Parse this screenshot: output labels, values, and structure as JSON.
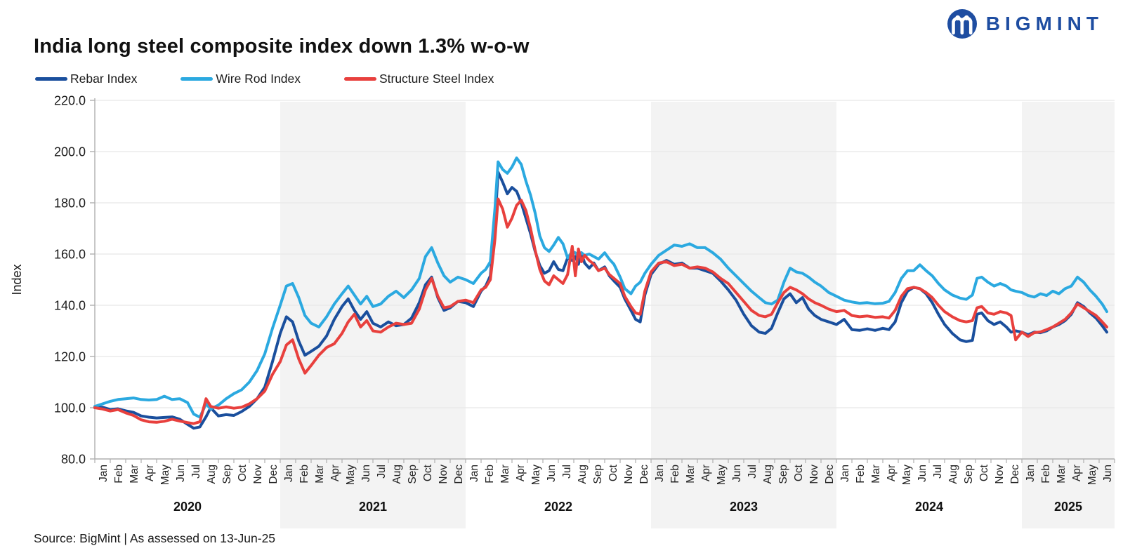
{
  "header": {
    "title": "India long steel composite index down 1.3% w-o-w"
  },
  "brand": {
    "name": "BIGMINT",
    "color": "#1E4DA1"
  },
  "legend": [
    {
      "label": "Rebar Index",
      "color": "#1A4F9D"
    },
    {
      "label": "Wire Rod Index",
      "color": "#2BA9E0"
    },
    {
      "label": "Structure Steel Index",
      "color": "#E8403D"
    }
  ],
  "footer": {
    "source_note": "Source: BigMint | As assessed on 13-Jun-25"
  },
  "chart_data": {
    "type": "line",
    "title": "India long steel composite index down 1.3% w-o-w",
    "ylabel": "Index",
    "ylim": [
      80,
      220
    ],
    "ytick_step": 20,
    "ytick_labels": [
      "80.0",
      "100.0",
      "120.0",
      "140.0",
      "160.0",
      "180.0",
      "200.0",
      "220.0"
    ],
    "grid": "horizontal",
    "legend_position": "top-left",
    "x_unit": "months since Jan-2020 (0 = Jan 2020)",
    "month_labels": [
      "Jan",
      "Feb",
      "Mar",
      "Apr",
      "May",
      "Jun",
      "Jul",
      "Aug",
      "Sep",
      "Oct",
      "Nov",
      "Dec"
    ],
    "years": [
      {
        "year": "2020",
        "months": 12,
        "shaded": false
      },
      {
        "year": "2021",
        "months": 12,
        "shaded": true
      },
      {
        "year": "2022",
        "months": 12,
        "shaded": false
      },
      {
        "year": "2023",
        "months": 12,
        "shaded": true
      },
      {
        "year": "2024",
        "months": 12,
        "shaded": false
      },
      {
        "year": "2025",
        "months": 6,
        "shaded": true
      }
    ],
    "x": [
      0,
      0.5,
      1,
      1.5,
      2,
      2.5,
      3,
      3.5,
      4,
      4.5,
      5,
      5.5,
      6,
      6.4,
      6.8,
      7.2,
      7.5,
      8,
      8.5,
      9,
      9.5,
      10,
      10.5,
      11,
      11.5,
      12,
      12.4,
      12.8,
      13.2,
      13.6,
      14,
      14.5,
      15,
      15.5,
      16,
      16.4,
      16.8,
      17.2,
      17.6,
      18,
      18.5,
      19,
      19.5,
      20,
      20.5,
      21,
      21.4,
      21.8,
      22.2,
      22.6,
      23,
      23.5,
      24,
      24.5,
      25,
      25.3,
      25.6,
      25.9,
      26.1,
      26.4,
      26.7,
      27,
      27.3,
      27.6,
      27.9,
      28.2,
      28.5,
      28.8,
      29.1,
      29.4,
      29.7,
      30,
      30.3,
      30.6,
      30.9,
      31.1,
      31.3,
      31.5,
      31.7,
      32,
      32.3,
      32.6,
      33,
      33.3,
      33.6,
      34,
      34.3,
      34.7,
      35,
      35.3,
      35.6,
      36,
      36.5,
      37,
      37.5,
      38,
      38.5,
      39,
      39.5,
      40,
      40.5,
      41,
      41.5,
      42,
      42.5,
      43,
      43.4,
      43.8,
      44.2,
      44.6,
      45,
      45.4,
      45.8,
      46.2,
      46.6,
      47,
      47.5,
      48,
      48.5,
      49,
      49.5,
      50,
      50.5,
      51,
      51.4,
      51.8,
      52.2,
      52.6,
      53,
      53.4,
      53.8,
      54.2,
      54.6,
      55,
      55.5,
      56,
      56.4,
      56.8,
      57.1,
      57.4,
      57.8,
      58.2,
      58.6,
      59,
      59.3,
      59.6,
      60,
      60.4,
      60.8,
      61.2,
      61.6,
      62,
      62.4,
      62.8,
      63.2,
      63.6,
      64,
      64.4,
      64.8,
      65.2,
      65.5
    ],
    "series": [
      {
        "name": "Rebar Index",
        "color": "#1A4F9D",
        "values": [
          100,
          100.2,
          99.3,
          99.6,
          98.8,
          98.2,
          96.8,
          96.3,
          96,
          96.2,
          96.4,
          95.5,
          93.5,
          92,
          92.5,
          96.5,
          100,
          96.8,
          97.3,
          97,
          98.5,
          100.5,
          103.5,
          108,
          118,
          129,
          135.5,
          133.5,
          126,
          120.5,
          122,
          124,
          128,
          134.5,
          139.5,
          142.5,
          138,
          134.5,
          137.5,
          133,
          131.5,
          133.5,
          132,
          132.5,
          135,
          141,
          148,
          151,
          143,
          138,
          139,
          141.5,
          141,
          139.5,
          145.5,
          147.5,
          151.5,
          172,
          192,
          188,
          183.5,
          186,
          184.5,
          180,
          174,
          168,
          161,
          155.5,
          152.5,
          153.5,
          157,
          154,
          153.5,
          158.5,
          157.5,
          159,
          156,
          160.5,
          156.5,
          154.5,
          156.5,
          153.5,
          155,
          151.5,
          149.5,
          147,
          142.5,
          138,
          134.5,
          133.5,
          144,
          152,
          156,
          157.5,
          156,
          156.5,
          154.5,
          154.5,
          153.5,
          152.5,
          149.5,
          146,
          142,
          136.5,
          132,
          129.5,
          129,
          131,
          137,
          142.5,
          144.5,
          141,
          143,
          138.5,
          136,
          134.5,
          133.5,
          132.5,
          134.5,
          130.5,
          130.2,
          130.8,
          130.2,
          131,
          130.5,
          133.5,
          141,
          145.5,
          147,
          146.5,
          144.5,
          141,
          136.5,
          132.5,
          129,
          126.5,
          125.8,
          126.3,
          136.5,
          137,
          134,
          132.5,
          133.5,
          131.5,
          129.5,
          130,
          129.5,
          128.5,
          129.5,
          129.3,
          130,
          131.5,
          132.5,
          134,
          136.5,
          141,
          139.5,
          137,
          135,
          132,
          129.5
        ]
      },
      {
        "name": "Wire Rod Index",
        "color": "#2BA9E0",
        "values": [
          100.5,
          101.5,
          102.5,
          103.2,
          103.5,
          103.8,
          103.2,
          103,
          103.2,
          104.5,
          103.2,
          103.5,
          102,
          97.5,
          96.3,
          101.5,
          99.5,
          101,
          103.5,
          105.5,
          107,
          110,
          114.5,
          121,
          131,
          140,
          147.5,
          148.5,
          143,
          136,
          133,
          131.5,
          135.5,
          140.5,
          144.5,
          147.5,
          144,
          140.5,
          143.5,
          139.5,
          140.5,
          143.5,
          145.5,
          143,
          146,
          150.5,
          159,
          162.5,
          156.5,
          151.5,
          149,
          151,
          150,
          148.5,
          152.5,
          154,
          157,
          178,
          196,
          193,
          191.5,
          194,
          197.5,
          195,
          188.5,
          183,
          176,
          167,
          162.5,
          161,
          163.5,
          166.5,
          164,
          158.5,
          161,
          160.5,
          159,
          160.5,
          159.5,
          160,
          159,
          158,
          160.5,
          158,
          156,
          151,
          146.5,
          144.5,
          147.5,
          149,
          152.5,
          156,
          159.5,
          161.5,
          163.5,
          163,
          164,
          162.5,
          162.5,
          160.5,
          158,
          154.5,
          151.5,
          148.5,
          145.5,
          143,
          141,
          140.5,
          142,
          149,
          154.5,
          153,
          152.5,
          151,
          149,
          147.5,
          145,
          143.5,
          142,
          141.3,
          140.8,
          141,
          140.6,
          140.8,
          141.5,
          145,
          150.5,
          153.5,
          153.5,
          155.8,
          153.5,
          151.5,
          148.5,
          146,
          144,
          142.8,
          142.3,
          144,
          150.5,
          151,
          149,
          147.5,
          148.5,
          147.5,
          146,
          145.5,
          145,
          143.8,
          143.2,
          144.5,
          143.8,
          145.5,
          144.5,
          146.5,
          147.5,
          151,
          149,
          146,
          143.5,
          140.5,
          137.5
        ]
      },
      {
        "name": "Structure Steel Index",
        "color": "#E8403D",
        "values": [
          100,
          99.5,
          98.7,
          99.3,
          98,
          97,
          95.3,
          94.5,
          94.3,
          94.7,
          95.5,
          94.8,
          94.2,
          93.8,
          94.5,
          103.5,
          100.5,
          99.8,
          100.3,
          99.8,
          100.2,
          101.5,
          103.5,
          106.5,
          113,
          118,
          124.5,
          126.5,
          119,
          113.5,
          116.5,
          120.5,
          123.5,
          125,
          129,
          133.5,
          136.5,
          131.5,
          134,
          130,
          129.5,
          131.5,
          133,
          132.5,
          133,
          138.5,
          146,
          150.5,
          143.5,
          139,
          139.5,
          141.5,
          142,
          141,
          146,
          147,
          150,
          166,
          181.5,
          177.5,
          170.5,
          174,
          179,
          181,
          177,
          170,
          161.5,
          154,
          149.5,
          148,
          151.5,
          150,
          148.5,
          152,
          163,
          151.5,
          162,
          157,
          159.5,
          157.5,
          156,
          153.5,
          154.5,
          152,
          150.5,
          148.5,
          143.5,
          139.5,
          137,
          136.5,
          145.5,
          153,
          156.5,
          157,
          155.5,
          156,
          154.5,
          155,
          154.5,
          153,
          150.5,
          148.5,
          145,
          141.5,
          138,
          136,
          135.5,
          136.5,
          141,
          145,
          147,
          146,
          144.5,
          142.5,
          141,
          140,
          138.5,
          137.5,
          138,
          136,
          135.5,
          135.8,
          135.3,
          135.5,
          135,
          138,
          143.5,
          146.5,
          147,
          146.5,
          145,
          143,
          140,
          137.5,
          135.5,
          134,
          133.5,
          134,
          139,
          139.5,
          137,
          136.5,
          137.5,
          137,
          136,
          126.5,
          129.5,
          127.8,
          129.3,
          129.6,
          130.5,
          131.5,
          133,
          134.5,
          137,
          140.5,
          139,
          137.5,
          136,
          133.5,
          131.5
        ]
      }
    ]
  }
}
